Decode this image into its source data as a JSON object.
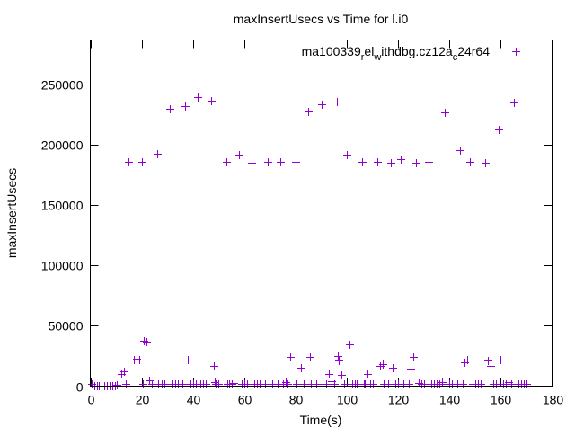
{
  "chart_data": {
    "type": "scatter",
    "title": "maxInsertUsecs vs Time for l.i0",
    "xlabel": "Time(s)",
    "ylabel": "maxInsertUsecs",
    "xlim": [
      0,
      180
    ],
    "ylim": [
      0,
      287000
    ],
    "xticks": [
      0,
      20,
      40,
      60,
      80,
      100,
      120,
      140,
      160,
      180
    ],
    "yticks": [
      0,
      50000,
      100000,
      150000,
      200000,
      250000
    ],
    "grid": false,
    "legend_position": "top-right",
    "series": [
      {
        "name_parts": [
          "ma100339",
          "r",
          "el",
          "w",
          "ithdbg.cz12a",
          "c",
          "24r64"
        ],
        "name": "ma100339_rel_withdbg.cz12a_c24r64",
        "color": "#9400d3",
        "marker": "plus",
        "points": [
          [
            0.5,
            1500
          ],
          [
            1.5,
            300
          ],
          [
            2.5,
            200
          ],
          [
            3.5,
            200
          ],
          [
            4.5,
            200
          ],
          [
            5.5,
            200
          ],
          [
            6.5,
            200
          ],
          [
            7.5,
            200
          ],
          [
            8.5,
            300
          ],
          [
            9.5,
            500
          ],
          [
            10.5,
            800
          ],
          [
            12,
            10000
          ],
          [
            13,
            12000
          ],
          [
            14,
            1500
          ],
          [
            15,
            186000
          ],
          [
            17,
            22000
          ],
          [
            18,
            23000
          ],
          [
            19,
            22000
          ],
          [
            20,
            186000
          ],
          [
            20.5,
            1500
          ],
          [
            21,
            38000
          ],
          [
            22,
            37000
          ],
          [
            23,
            5000
          ],
          [
            24,
            1500
          ],
          [
            26,
            193000
          ],
          [
            26.5,
            1500
          ],
          [
            28,
            1500
          ],
          [
            29,
            1500
          ],
          [
            31,
            230000
          ],
          [
            32,
            1500
          ],
          [
            33,
            1500
          ],
          [
            34,
            1500
          ],
          [
            36,
            1500
          ],
          [
            37,
            232000
          ],
          [
            38,
            22000
          ],
          [
            39,
            1500
          ],
          [
            40,
            2000
          ],
          [
            41,
            1500
          ],
          [
            42,
            240000
          ],
          [
            43,
            1500
          ],
          [
            44,
            1500
          ],
          [
            45,
            1500
          ],
          [
            47,
            237000
          ],
          [
            48,
            17000
          ],
          [
            48.5,
            3500
          ],
          [
            49,
            1500
          ],
          [
            50,
            1500
          ],
          [
            53,
            186000
          ],
          [
            53.5,
            1500
          ],
          [
            54,
            1500
          ],
          [
            55,
            1500
          ],
          [
            56,
            2500
          ],
          [
            58,
            192000
          ],
          [
            59,
            1500
          ],
          [
            60,
            1500
          ],
          [
            61,
            1500
          ],
          [
            63,
            185000
          ],
          [
            64,
            1500
          ],
          [
            65,
            1500
          ],
          [
            66,
            1500
          ],
          [
            68,
            1500
          ],
          [
            69,
            186000
          ],
          [
            70,
            1500
          ],
          [
            71,
            1500
          ],
          [
            73,
            1500
          ],
          [
            74,
            186000
          ],
          [
            75,
            1500
          ],
          [
            76,
            3000
          ],
          [
            77,
            1500
          ],
          [
            78,
            24000
          ],
          [
            80,
            186000
          ],
          [
            80.5,
            1500
          ],
          [
            82,
            15000
          ],
          [
            83,
            1500
          ],
          [
            85,
            228000
          ],
          [
            85.5,
            24000
          ],
          [
            86,
            1500
          ],
          [
            87,
            1500
          ],
          [
            88,
            1500
          ],
          [
            90,
            234000
          ],
          [
            90.5,
            1500
          ],
          [
            92,
            1500
          ],
          [
            93,
            10000
          ],
          [
            94,
            4000
          ],
          [
            95,
            1500
          ],
          [
            96,
            236000
          ],
          [
            96.5,
            25000
          ],
          [
            97,
            21000
          ],
          [
            98,
            9000
          ],
          [
            99,
            1500
          ],
          [
            100,
            192000
          ],
          [
            101,
            35000
          ],
          [
            102,
            1500
          ],
          [
            103,
            1500
          ],
          [
            104,
            1500
          ],
          [
            106,
            186000
          ],
          [
            106.5,
            1500
          ],
          [
            107,
            1500
          ],
          [
            108,
            10000
          ],
          [
            109,
            1500
          ],
          [
            110,
            1500
          ],
          [
            112,
            186000
          ],
          [
            113,
            17000
          ],
          [
            114,
            18000
          ],
          [
            114.5,
            1500
          ],
          [
            116,
            1500
          ],
          [
            117,
            185000
          ],
          [
            118,
            15000
          ],
          [
            119,
            1500
          ],
          [
            120,
            1500
          ],
          [
            121,
            188000
          ],
          [
            122,
            1500
          ],
          [
            124,
            1500
          ],
          [
            125,
            14000
          ],
          [
            126,
            24000
          ],
          [
            127,
            185000
          ],
          [
            128,
            2500
          ],
          [
            129,
            1500
          ],
          [
            130,
            1500
          ],
          [
            132,
            186000
          ],
          [
            133,
            1500
          ],
          [
            134,
            1500
          ],
          [
            135,
            1500
          ],
          [
            136,
            1500
          ],
          [
            137,
            3000
          ],
          [
            138,
            227000
          ],
          [
            139,
            1500
          ],
          [
            140,
            1500
          ],
          [
            141,
            1500
          ],
          [
            143,
            1500
          ],
          [
            144,
            196000
          ],
          [
            145,
            1500
          ],
          [
            146,
            20000
          ],
          [
            147,
            22000
          ],
          [
            148,
            186000
          ],
          [
            149,
            1500
          ],
          [
            150,
            1500
          ],
          [
            151,
            1500
          ],
          [
            152,
            1500
          ],
          [
            154,
            185000
          ],
          [
            155,
            21000
          ],
          [
            156,
            17000
          ],
          [
            157,
            1500
          ],
          [
            158,
            1500
          ],
          [
            159,
            213000
          ],
          [
            160,
            22000
          ],
          [
            161,
            1500
          ],
          [
            162,
            1500
          ],
          [
            163,
            3000
          ],
          [
            164,
            1500
          ],
          [
            165,
            235000
          ],
          [
            166,
            1500
          ],
          [
            167,
            1500
          ],
          [
            168,
            1500
          ],
          [
            169,
            1500
          ],
          [
            170,
            1500
          ]
        ]
      }
    ]
  }
}
